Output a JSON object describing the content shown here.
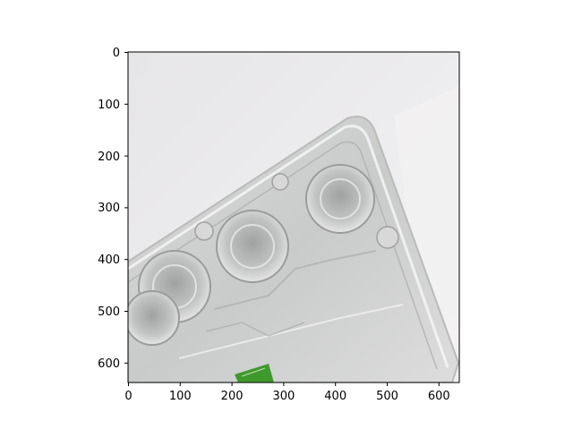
{
  "figure": {
    "image_description_free": true,
    "axes": {
      "x_ticks": [
        "0",
        "100",
        "200",
        "300",
        "400",
        "500",
        "600"
      ],
      "y_ticks": [
        "0",
        "100",
        "200",
        "300",
        "400",
        "500",
        "600"
      ],
      "xlim": [
        0,
        640
      ],
      "ylim": [
        640,
        0
      ]
    },
    "colors": {
      "background": "#e9e8ea",
      "plastic": "#cfd0d0",
      "plastic_dark": "#a8aaa9",
      "plastic_light": "#f4f4f4",
      "label_green": "#3e9a2c"
    }
  }
}
